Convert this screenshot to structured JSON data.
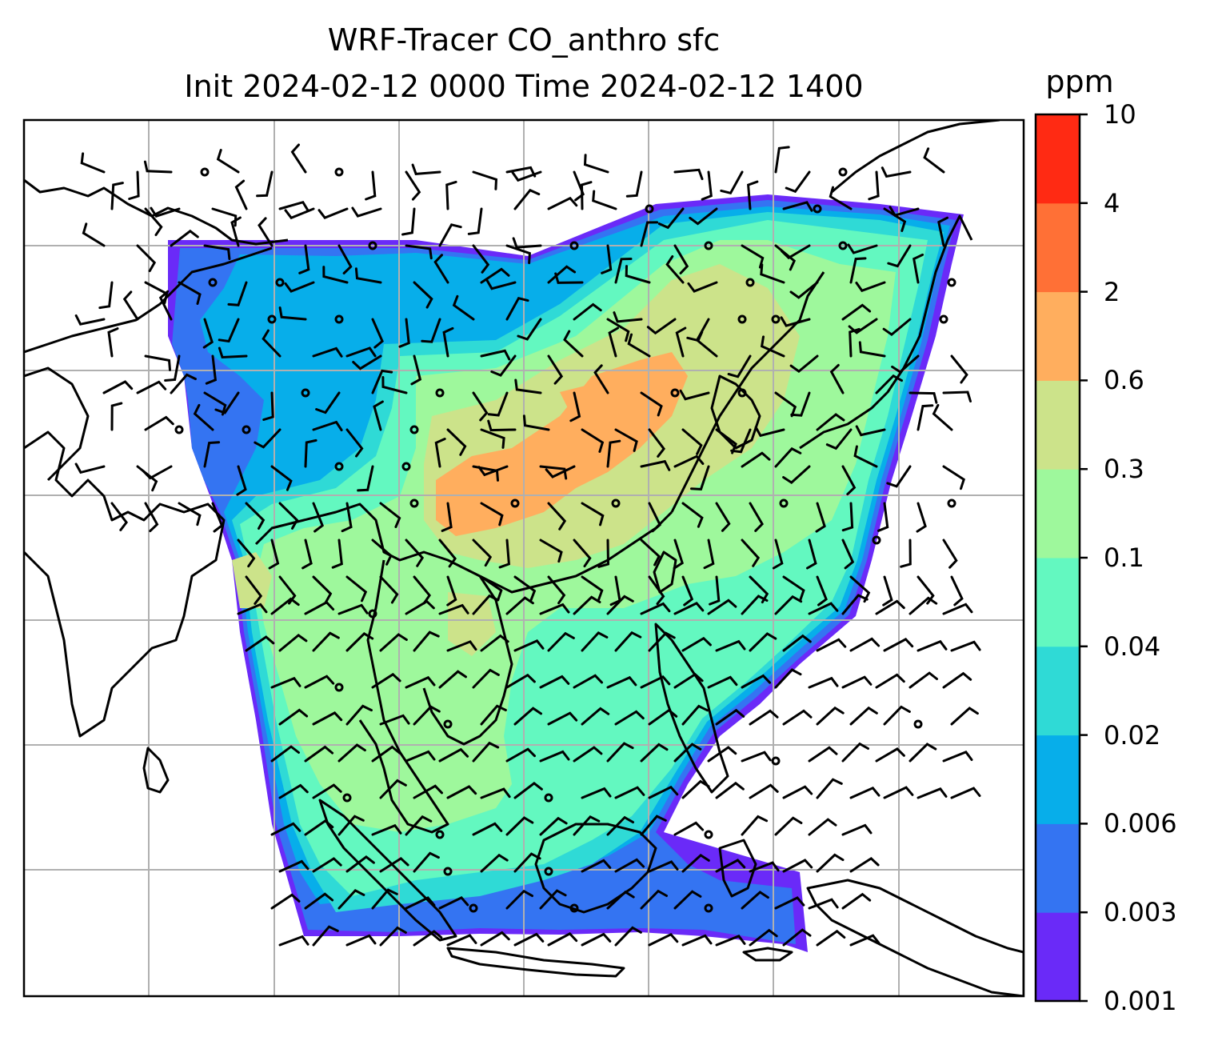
{
  "title": {
    "line1": "WRF-Tracer CO_anthro sfc",
    "line2": "Init 2024-02-12 0000 Time 2024-02-12 1400"
  },
  "colorbar": {
    "unit": "ppm",
    "levels": [
      "0.001",
      "0.003",
      "0.006",
      "0.02",
      "0.04",
      "0.1",
      "0.3",
      "0.6",
      "2",
      "4",
      "10"
    ],
    "colors": [
      "#6a2af8",
      "#3474f2",
      "#07aeea",
      "#2fdad6",
      "#63f8c0",
      "#9ef89c",
      "#cce38a",
      "#ffae5e",
      "#ff7036",
      "#ff2a13"
    ]
  },
  "map": {
    "land_line_color": "#000000",
    "grid_color": "#b0b0b0",
    "wind_barb_color": "#000000",
    "contour_colors_used": [
      "#6a2af8",
      "#3474f2",
      "#07aeea",
      "#2fdad6",
      "#63f8c0",
      "#9ef89c",
      "#cce38a",
      "#ffae5e"
    ]
  }
}
